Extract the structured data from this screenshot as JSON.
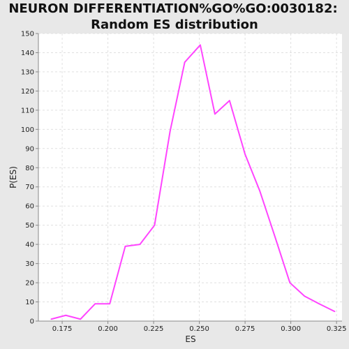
{
  "chart_data": {
    "type": "line",
    "title": "NEURON DIFFERENTIATION%GO%GO:0030182:",
    "subtitle": "Random ES distribution",
    "xlabel": "ES",
    "ylabel": "P(ES)",
    "xlim": [
      0.162,
      0.328
    ],
    "ylim": [
      0,
      150
    ],
    "x_ticks": [
      0.175,
      0.2,
      0.225,
      0.25,
      0.275,
      0.3,
      0.325
    ],
    "x_tick_labels": [
      "0.175",
      "0.200",
      "0.225",
      "0.250",
      "0.275",
      "0.300",
      "0.325"
    ],
    "y_ticks": [
      0,
      10,
      20,
      30,
      40,
      50,
      60,
      70,
      80,
      90,
      100,
      110,
      120,
      130,
      140,
      150
    ],
    "y_tick_labels": [
      "0",
      "10",
      "20",
      "30",
      "40",
      "50",
      "60",
      "70",
      "80",
      "90",
      "100",
      "110",
      "120",
      "130",
      "140",
      "150"
    ],
    "grid": true,
    "series": [
      {
        "color": "#ff44ff",
        "x": [
          0.169,
          0.177,
          0.185,
          0.193,
          0.201,
          0.2095,
          0.2175,
          0.2255,
          0.234,
          0.242,
          0.2505,
          0.2585,
          0.2665,
          0.275,
          0.283,
          0.291,
          0.2995,
          0.3075,
          0.3155,
          0.324
        ],
        "y": [
          1,
          3,
          1,
          9,
          9,
          39,
          40,
          50,
          99,
          135,
          144,
          108,
          115,
          87,
          68,
          45,
          20,
          13,
          9,
          5
        ]
      }
    ],
    "colors": {
      "background": "#e8e8e8",
      "plot_background": "#ffffff",
      "grid": "#e0e0e0",
      "axis": "#888888"
    }
  }
}
